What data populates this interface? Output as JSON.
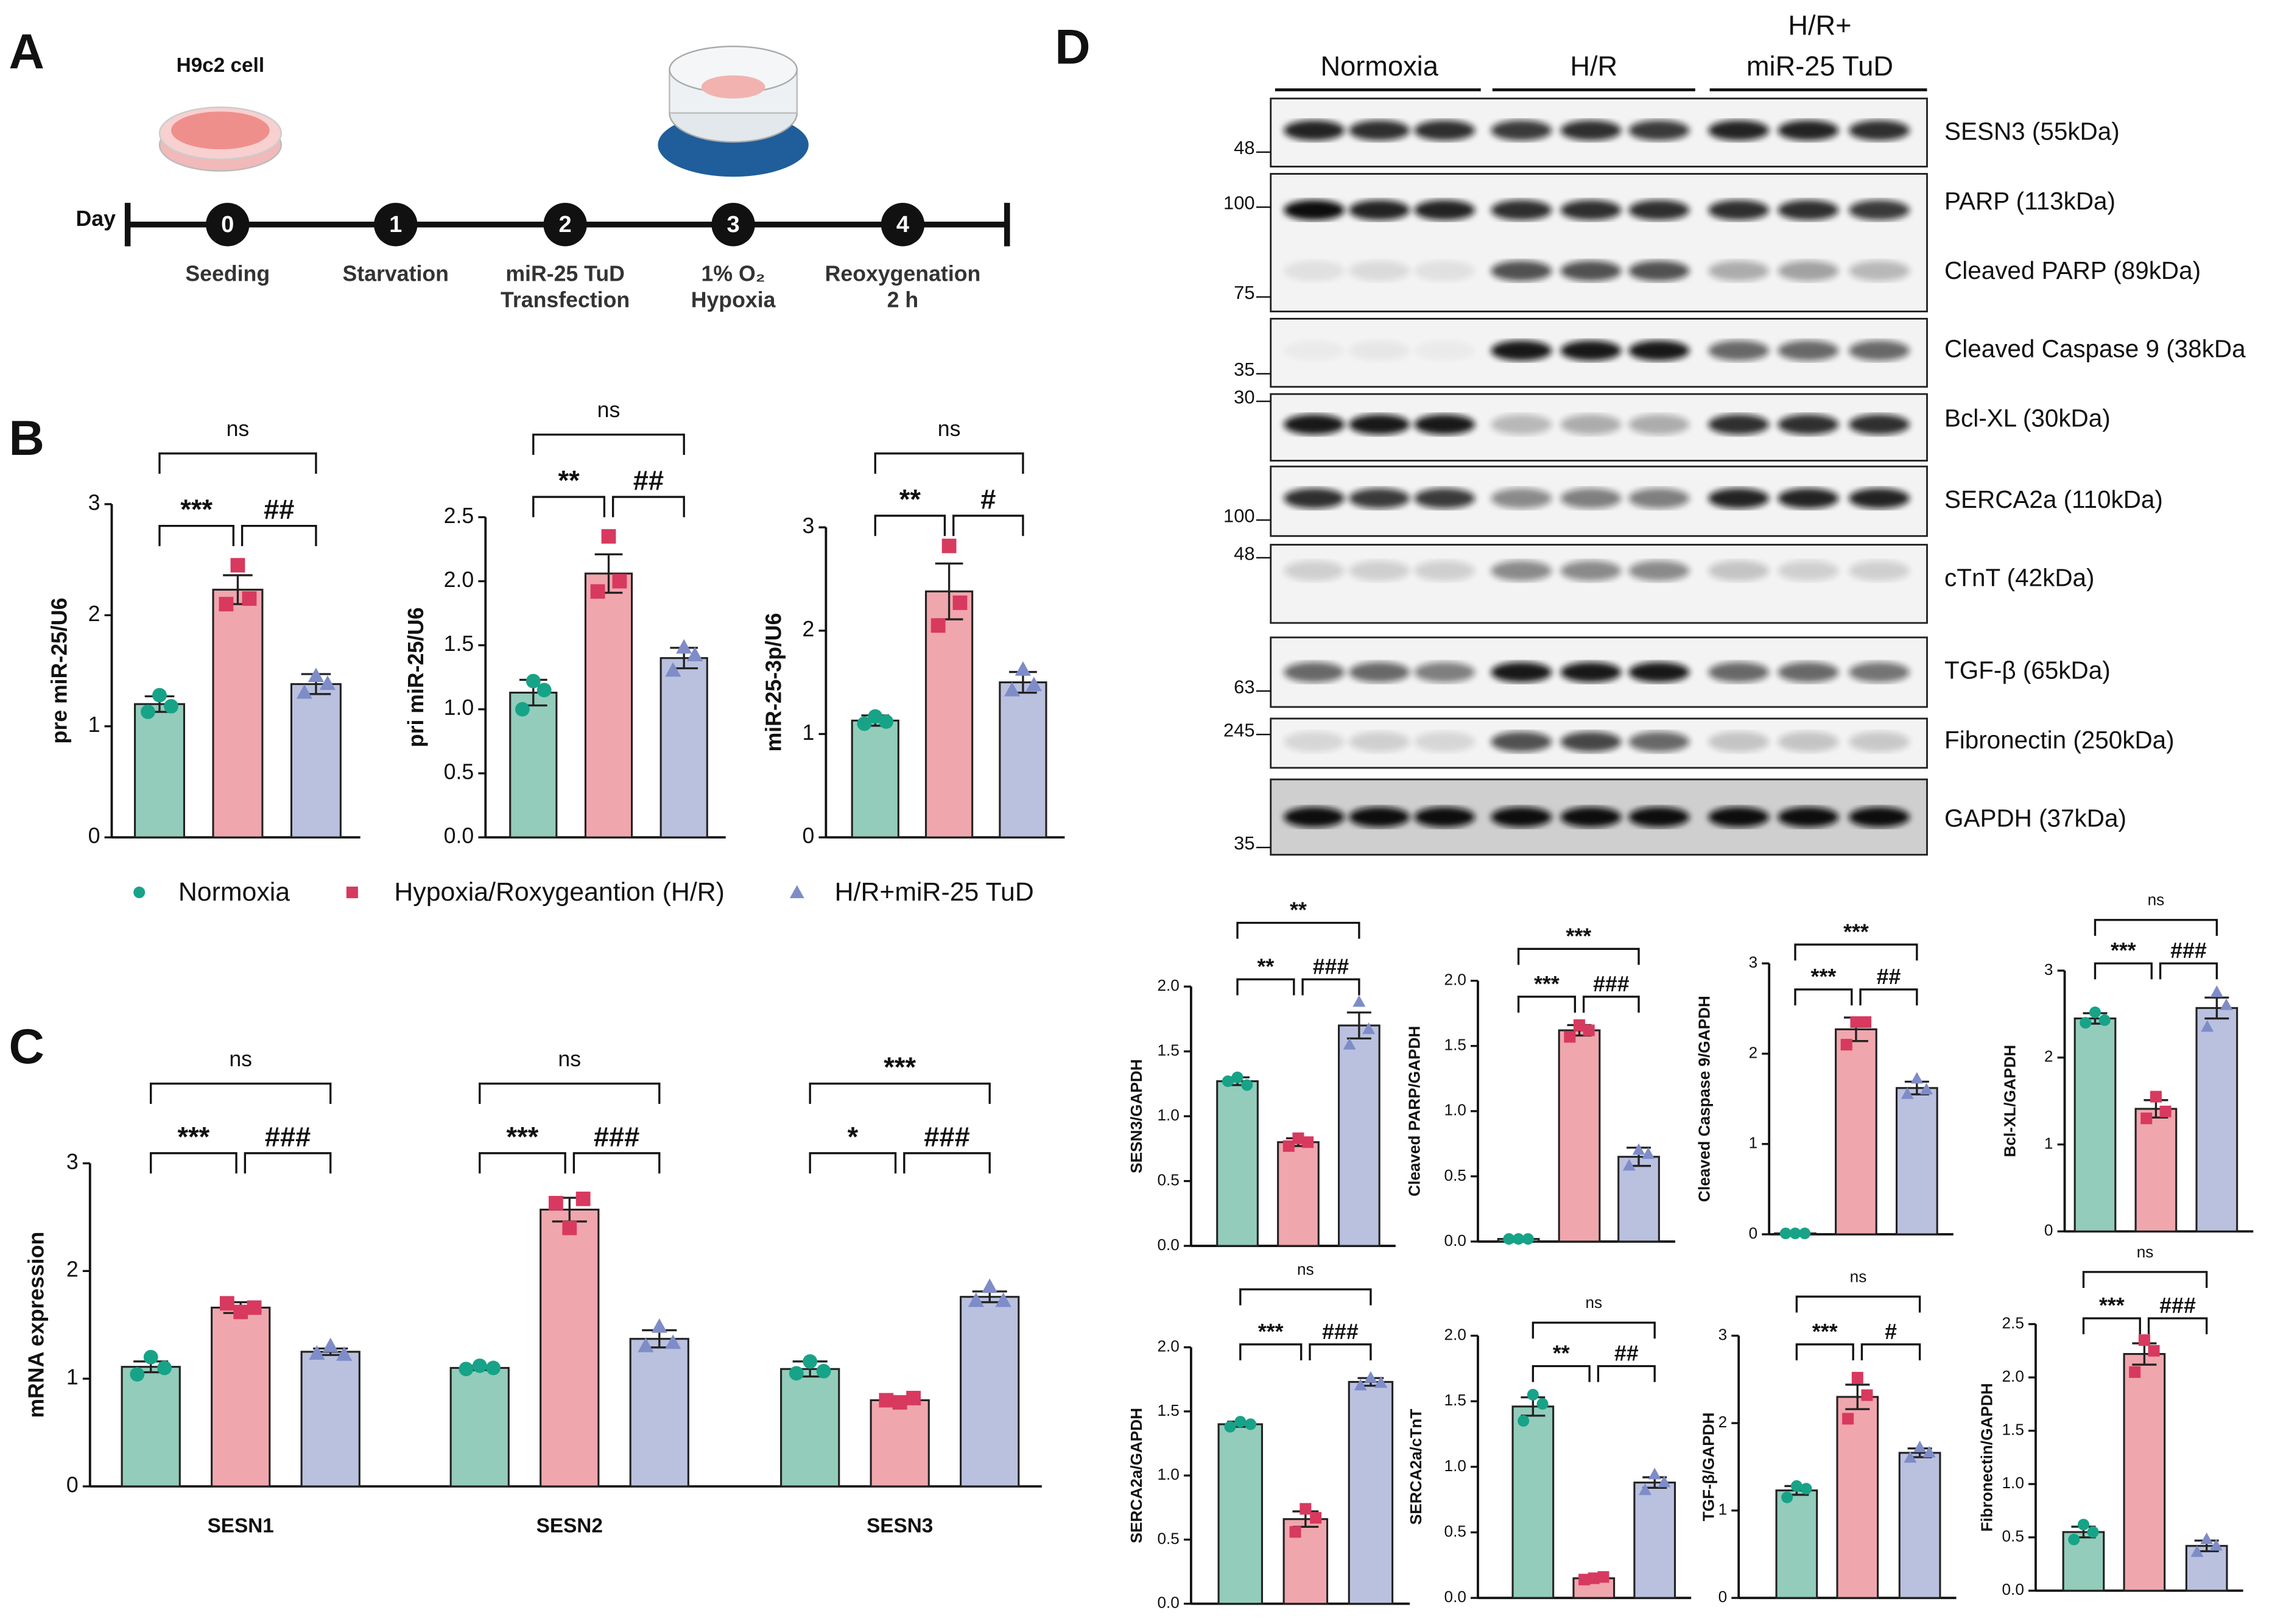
{
  "panel_labels": [
    "A",
    "B",
    "C",
    "D"
  ],
  "timeline": {
    "cell_label": "H9c2 cell",
    "day_label": "Day",
    "steps": [
      {
        "day": 0,
        "lines": [
          "Seeding"
        ]
      },
      {
        "day": 1,
        "lines": [
          "Starvation"
        ]
      },
      {
        "day": 2,
        "lines": [
          "miR-25 TuD",
          "Transfection"
        ]
      },
      {
        "day": 3,
        "lines": [
          "1% O₂",
          "Hypoxia"
        ]
      },
      {
        "day": 4,
        "lines": [
          "Reoxygenation",
          "2 h"
        ]
      }
    ]
  },
  "legend": {
    "entries": [
      "Normoxia",
      "Hypoxia/Roxygeantion (H/R)",
      "H/R+miR-25 TuD"
    ],
    "fill_colors": [
      "#93ccbb",
      "#f0a6ad",
      "#bac1df"
    ],
    "point_colors": [
      "#17a387",
      "#d8395f",
      "#7e8cc8"
    ]
  },
  "blot": {
    "groups": [
      {
        "lines": [
          "Normoxia"
        ]
      },
      {
        "lines": [
          "H/R"
        ]
      },
      {
        "lines": [
          "H/R+",
          "miR-25 TuD"
        ]
      }
    ],
    "rows": [
      {
        "labels": [
          "SESN3 (55kDa)"
        ],
        "markers": [
          48
        ]
      },
      {
        "labels": [
          "PARP (113kDa)",
          "Cleaved PARP (89kDa)"
        ],
        "markers": [
          100,
          75
        ]
      },
      {
        "labels": [
          "Cleaved Caspase 9 (38kDa"
        ],
        "markers": [
          35
        ]
      },
      {
        "labels": [
          "Bcl-XL (30kDa)"
        ],
        "markers": [
          30
        ]
      },
      {
        "labels": [
          "SERCA2a (110kDa)"
        ],
        "markers": [
          100
        ]
      },
      {
        "labels": [
          "cTnT (42kDa)"
        ],
        "markers": [
          48
        ]
      },
      {
        "labels": [
          "TGF-β (65kDa)"
        ],
        "markers": [
          63
        ]
      },
      {
        "labels": [
          "Fibronectin (250kDa)"
        ],
        "markers": [
          245
        ]
      },
      {
        "labels": [
          "GAPDH (37kDa)"
        ],
        "markers": [
          35
        ]
      }
    ]
  },
  "chart_data": [
    {
      "type": "bar",
      "ylabel": "pre miR-25/U6",
      "ylim": [
        0,
        3
      ],
      "yticks": [
        0,
        1,
        2,
        3
      ],
      "values": [
        1.2,
        2.23,
        1.38
      ],
      "errors": [
        0.07,
        0.13,
        0.09
      ],
      "points": [
        [
          1.13,
          1.28,
          1.18
        ],
        [
          2.1,
          2.45,
          2.15
        ],
        [
          1.3,
          1.45,
          1.38
        ]
      ],
      "annotations": [
        {
          "label": "ns",
          "pair": [
            0,
            2
          ]
        },
        {
          "label": "***",
          "pair": [
            0,
            1
          ]
        },
        {
          "label": "##",
          "pair": [
            1,
            2
          ]
        }
      ]
    },
    {
      "type": "bar",
      "ylabel": "pri miR-25/U6",
      "ylim": [
        0,
        2.5
      ],
      "yticks": [
        {
          "value": 0,
          "label": "0.0"
        },
        {
          "value": 0.5,
          "label": "0.5"
        },
        {
          "value": 1,
          "label": "1.0"
        },
        {
          "value": 1.5,
          "label": "1.5"
        },
        {
          "value": 2,
          "label": "2.0"
        },
        {
          "value": 2.5,
          "label": "2.5"
        }
      ],
      "values": [
        1.13,
        2.06,
        1.4
      ],
      "errors": [
        0.1,
        0.15,
        0.08
      ],
      "points": [
        [
          1.0,
          1.22,
          1.15
        ],
        [
          1.92,
          2.35,
          2.0
        ],
        [
          1.3,
          1.48,
          1.42
        ]
      ],
      "annotations": [
        {
          "label": "ns",
          "pair": [
            0,
            2
          ]
        },
        {
          "label": "**",
          "pair": [
            0,
            1
          ]
        },
        {
          "label": "##",
          "pair": [
            1,
            2
          ]
        }
      ]
    },
    {
      "type": "bar",
      "ylabel": "miR-25-3p/U6",
      "ylim": [
        0,
        3
      ],
      "yticks": [
        0,
        1,
        2,
        3
      ],
      "values": [
        1.13,
        2.38,
        1.5
      ],
      "errors": [
        0.05,
        0.27,
        0.1
      ],
      "points": [
        [
          1.1,
          1.17,
          1.12
        ],
        [
          2.05,
          2.82,
          2.27
        ],
        [
          1.42,
          1.62,
          1.47
        ]
      ],
      "annotations": [
        {
          "label": "ns",
          "pair": [
            0,
            2
          ]
        },
        {
          "label": "**",
          "pair": [
            0,
            1
          ]
        },
        {
          "label": "#",
          "pair": [
            1,
            2
          ]
        }
      ]
    },
    {
      "type": "grouped_bar",
      "ylabel": "mRNA expression",
      "ylim": [
        0,
        3
      ],
      "yticks": [
        0,
        1,
        2,
        3
      ],
      "categories": [
        "SESN1",
        "SESN2",
        "SESN3"
      ],
      "series": [
        {
          "values": [
            1.11,
            1.1,
            1.09
          ],
          "errors": [
            0.05,
            0.02,
            0.07
          ],
          "points": [
            [
              1.04,
              1.2,
              1.1
            ],
            [
              1.09,
              1.12,
              1.1
            ],
            [
              1.05,
              1.16,
              1.07
            ]
          ]
        },
        {
          "values": [
            1.66,
            2.57,
            0.8
          ],
          "errors": [
            0.05,
            0.11,
            0.02
          ],
          "points": [
            [
              1.7,
              1.62,
              1.66
            ],
            [
              2.63,
              2.4,
              2.67
            ],
            [
              0.8,
              0.78,
              0.82
            ]
          ]
        },
        {
          "values": [
            1.25,
            1.37,
            1.76
          ],
          "errors": [
            0.03,
            0.08,
            0.05
          ],
          "points": [
            [
              1.23,
              1.3,
              1.22
            ],
            [
              1.3,
              1.48,
              1.33
            ],
            [
              1.72,
              1.85,
              1.72
            ]
          ]
        }
      ],
      "annotations": [
        {
          "label": "ns",
          "category": 0,
          "pair": [
            0,
            2
          ]
        },
        {
          "label": "***",
          "category": 0,
          "pair": [
            0,
            1
          ]
        },
        {
          "label": "###",
          "category": 0,
          "pair": [
            1,
            2
          ]
        },
        {
          "label": "ns",
          "category": 1,
          "pair": [
            0,
            2
          ]
        },
        {
          "label": "***",
          "category": 1,
          "pair": [
            0,
            1
          ]
        },
        {
          "label": "###",
          "category": 1,
          "pair": [
            1,
            2
          ]
        },
        {
          "label": "***",
          "category": 2,
          "pair": [
            0,
            2
          ]
        },
        {
          "label": "*",
          "category": 2,
          "pair": [
            0,
            1
          ]
        },
        {
          "label": "###",
          "category": 2,
          "pair": [
            1,
            2
          ]
        }
      ]
    },
    {
      "type": "bar",
      "ylabel": "SESN3/GAPDH",
      "ylim": [
        0,
        2
      ],
      "yticks": [
        {
          "value": 0,
          "label": "0.0"
        },
        {
          "value": 0.5,
          "label": "0.5"
        },
        {
          "value": 1,
          "label": "1.0"
        },
        {
          "value": 1.5,
          "label": "1.5"
        },
        {
          "value": 2,
          "label": "2.0"
        }
      ],
      "values": [
        1.27,
        0.8,
        1.7
      ],
      "errors": [
        0.03,
        0.03,
        0.1
      ],
      "points": [
        [
          1.27,
          1.3,
          1.24
        ],
        [
          0.77,
          0.83,
          0.8
        ],
        [
          1.55,
          1.88,
          1.67
        ]
      ],
      "annotations": [
        {
          "label": "**",
          "pair": [
            0,
            2
          ]
        },
        {
          "label": "**",
          "pair": [
            0,
            1
          ]
        },
        {
          "label": "###",
          "pair": [
            1,
            2
          ]
        }
      ]
    },
    {
      "type": "bar",
      "ylabel": "Cleaved PARP/GAPDH",
      "ylim": [
        0,
        2
      ],
      "yticks": [
        {
          "value": 0,
          "label": "0.0"
        },
        {
          "value": 0.5,
          "label": "0.5"
        },
        {
          "value": 1,
          "label": "1.0"
        },
        {
          "value": 1.5,
          "label": "1.5"
        },
        {
          "value": 2,
          "label": "2.0"
        }
      ],
      "values": [
        0.02,
        1.62,
        0.65
      ],
      "errors": [
        0.005,
        0.04,
        0.07
      ],
      "points": [
        [
          0.02,
          0.02,
          0.02
        ],
        [
          1.57,
          1.66,
          1.62
        ],
        [
          0.58,
          0.7,
          0.67
        ]
      ],
      "annotations": [
        {
          "label": "***",
          "pair": [
            0,
            2
          ]
        },
        {
          "label": "***",
          "pair": [
            0,
            1
          ]
        },
        {
          "label": "###",
          "pair": [
            1,
            2
          ]
        }
      ]
    },
    {
      "type": "bar",
      "ylabel": "Cleaved Caspase 9/GAPDH",
      "ylim": [
        0,
        3
      ],
      "yticks": [
        0,
        1,
        2,
        3
      ],
      "values": [
        0.01,
        2.27,
        1.62
      ],
      "errors": [
        0.005,
        0.13,
        0.07
      ],
      "points": [
        [
          0.01,
          0.01,
          0.01
        ],
        [
          2.1,
          2.35,
          2.35
        ],
        [
          1.55,
          1.72,
          1.6
        ]
      ],
      "annotations": [
        {
          "label": "***",
          "pair": [
            0,
            2
          ]
        },
        {
          "label": "***",
          "pair": [
            0,
            1
          ]
        },
        {
          "label": "##",
          "pair": [
            1,
            2
          ]
        }
      ]
    },
    {
      "type": "bar",
      "ylabel": "Bcl-XL/GAPDH",
      "ylim": [
        0,
        3
      ],
      "yticks": [
        0,
        1,
        2,
        3
      ],
      "values": [
        2.45,
        1.41,
        2.57
      ],
      "errors": [
        0.06,
        0.1,
        0.12
      ],
      "points": [
        [
          2.4,
          2.52,
          2.43
        ],
        [
          1.3,
          1.55,
          1.38
        ],
        [
          2.35,
          2.75,
          2.6
        ]
      ],
      "annotations": [
        {
          "label": "ns",
          "pair": [
            0,
            2
          ]
        },
        {
          "label": "***",
          "pair": [
            0,
            1
          ]
        },
        {
          "label": "###",
          "pair": [
            1,
            2
          ]
        }
      ]
    },
    {
      "type": "bar",
      "ylabel": "SERCA2a/GAPDH",
      "ylim": [
        0,
        2
      ],
      "yticks": [
        {
          "value": 0,
          "label": "0.0"
        },
        {
          "value": 0.5,
          "label": "0.5"
        },
        {
          "value": 1,
          "label": "1.0"
        },
        {
          "value": 1.5,
          "label": "1.5"
        },
        {
          "value": 2,
          "label": "2.0"
        }
      ],
      "values": [
        1.4,
        0.66,
        1.73
      ],
      "errors": [
        0.02,
        0.06,
        0.03
      ],
      "points": [
        [
          1.38,
          1.42,
          1.4
        ],
        [
          0.56,
          0.74,
          0.67
        ],
        [
          1.7,
          1.76,
          1.72
        ]
      ],
      "annotations": [
        {
          "label": "ns",
          "pair": [
            0,
            2
          ]
        },
        {
          "label": "***",
          "pair": [
            0,
            1
          ]
        },
        {
          "label": "###",
          "pair": [
            1,
            2
          ]
        }
      ]
    },
    {
      "type": "bar",
      "ylabel": "SERCA2a/cTnT",
      "ylim": [
        0,
        2
      ],
      "yticks": [
        {
          "value": 0,
          "label": "0.0"
        },
        {
          "value": 0.5,
          "label": "0.5"
        },
        {
          "value": 1,
          "label": "1.0"
        },
        {
          "value": 1.5,
          "label": "1.5"
        },
        {
          "value": 2,
          "label": "2.0"
        }
      ],
      "values": [
        1.46,
        0.15,
        0.88
      ],
      "errors": [
        0.07,
        0.01,
        0.04
      ],
      "points": [
        [
          1.35,
          1.55,
          1.48
        ],
        [
          0.14,
          0.15,
          0.16
        ],
        [
          0.82,
          0.94,
          0.88
        ]
      ],
      "annotations": [
        {
          "label": "ns",
          "pair": [
            0,
            2
          ]
        },
        {
          "label": "**",
          "pair": [
            0,
            1
          ]
        },
        {
          "label": "##",
          "pair": [
            1,
            2
          ]
        }
      ]
    },
    {
      "type": "bar",
      "ylabel": "TGF-β/GAPDH",
      "ylim": [
        0,
        3
      ],
      "yticks": [
        0,
        1,
        2,
        3
      ],
      "values": [
        1.23,
        2.3,
        1.66
      ],
      "errors": [
        0.05,
        0.14,
        0.05
      ],
      "points": [
        [
          1.15,
          1.28,
          1.25
        ],
        [
          2.05,
          2.52,
          2.32
        ],
        [
          1.6,
          1.72,
          1.66
        ]
      ],
      "annotations": [
        {
          "label": "ns",
          "pair": [
            0,
            2
          ]
        },
        {
          "label": "***",
          "pair": [
            0,
            1
          ]
        },
        {
          "label": "#",
          "pair": [
            1,
            2
          ]
        }
      ]
    },
    {
      "type": "bar",
      "ylabel": "Fibronectin/GAPDH",
      "ylim": [
        0,
        2.5
      ],
      "yticks": [
        {
          "value": 0,
          "label": "0.0"
        },
        {
          "value": 0.5,
          "label": "0.5"
        },
        {
          "value": 1,
          "label": "1.0"
        },
        {
          "value": 1.5,
          "label": "1.5"
        },
        {
          "value": 2,
          "label": "2.0"
        },
        {
          "value": 2.5,
          "label": "2.5"
        }
      ],
      "values": [
        0.55,
        2.22,
        0.42
      ],
      "errors": [
        0.05,
        0.1,
        0.05
      ],
      "points": [
        [
          0.48,
          0.62,
          0.55
        ],
        [
          2.05,
          2.35,
          2.25
        ],
        [
          0.36,
          0.48,
          0.42
        ]
      ],
      "annotations": [
        {
          "label": "ns",
          "pair": [
            0,
            2
          ]
        },
        {
          "label": "***",
          "pair": [
            0,
            1
          ]
        },
        {
          "label": "###",
          "pair": [
            1,
            2
          ]
        }
      ]
    }
  ]
}
